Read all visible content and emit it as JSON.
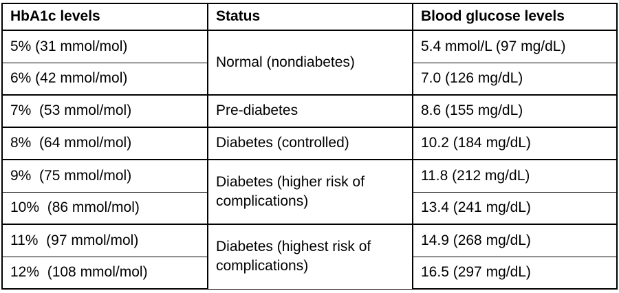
{
  "chart_data": {
    "type": "table",
    "columns": [
      "HbA1c levels",
      "Status",
      "Blood glucose levels"
    ],
    "rows": [
      [
        "5% (31 mmol/mol)",
        "Normal (nondiabetes)",
        "5.4 mmol/L (97 mg/dL)"
      ],
      [
        "6% (42 mmol/mol)",
        "Normal (nondiabetes)",
        "7.0 (126 mg/dL)"
      ],
      [
        "7% (53 mmol/mol)",
        "Pre-diabetes",
        "8.6 (155 mg/dL)"
      ],
      [
        "8% (64 mmol/mol)",
        "Diabetes (controlled)",
        "10.2 (184 mg/dL)"
      ],
      [
        "9% (75 mmol/mol)",
        "Diabetes (higher risk of complications)",
        "11.8 (212 mg/dL)"
      ],
      [
        "10% (86 mmol/mol)",
        "Diabetes (higher risk of complications)",
        "13.4 (241 mg/dL)"
      ],
      [
        "11% (97 mmol/mol)",
        "Diabetes (highest risk of complications)",
        "14.9 (268 mg/dL)"
      ],
      [
        "12% (108 mmol/mol)",
        "Diabetes (highest risk of complications)",
        "16.5 (297 mg/dL)"
      ]
    ],
    "layout_hints": {
      "status_column_merged_groups": [
        [
          1,
          2
        ],
        [
          3
        ],
        [
          4
        ],
        [
          5,
          6
        ],
        [
          7,
          8
        ]
      ],
      "grid": "full black borders, thick group separators, thin in-group separators"
    }
  },
  "table": {
    "headers": [
      {
        "label": "HbA1c levels"
      },
      {
        "label": "Status"
      },
      {
        "label": "Blood glucose levels"
      }
    ],
    "groups": [
      {
        "status": "Normal (nondiabetes)",
        "rows": [
          {
            "hba1c": "5% (31 mmol/mol)",
            "glucose": "5.4 mmol/L (97 mg/dL)"
          },
          {
            "hba1c": "6% (42 mmol/mol)",
            "glucose": "7.0 (126 mg/dL)"
          }
        ]
      },
      {
        "status": "Pre-diabetes",
        "rows": [
          {
            "hba1c": "7%  (53 mmol/mol)",
            "glucose": "8.6 (155 mg/dL)"
          }
        ]
      },
      {
        "status": "Diabetes (controlled)",
        "rows": [
          {
            "hba1c": "8%  (64 mmol/mol)",
            "glucose": "10.2 (184 mg/dL)"
          }
        ]
      },
      {
        "status": "Diabetes (higher risk of complications)",
        "rows": [
          {
            "hba1c": "9%  (75 mmol/mol)",
            "glucose": "11.8 (212 mg/dL)"
          },
          {
            "hba1c": "10%  (86 mmol/mol)",
            "glucose": "13.4 (241 mg/dL)"
          }
        ]
      },
      {
        "status": "Diabetes (highest risk of complications)",
        "rows": [
          {
            "hba1c": "11%  (97 mmol/mol)",
            "glucose": "14.9 (268 mg/dL)"
          },
          {
            "hba1c": "12%  (108 mmol/mol)",
            "glucose": "16.5 (297 mg/dL)"
          }
        ]
      }
    ],
    "colors": {
      "border": "#000000",
      "text": "#000000",
      "background": "#ffffff"
    }
  }
}
